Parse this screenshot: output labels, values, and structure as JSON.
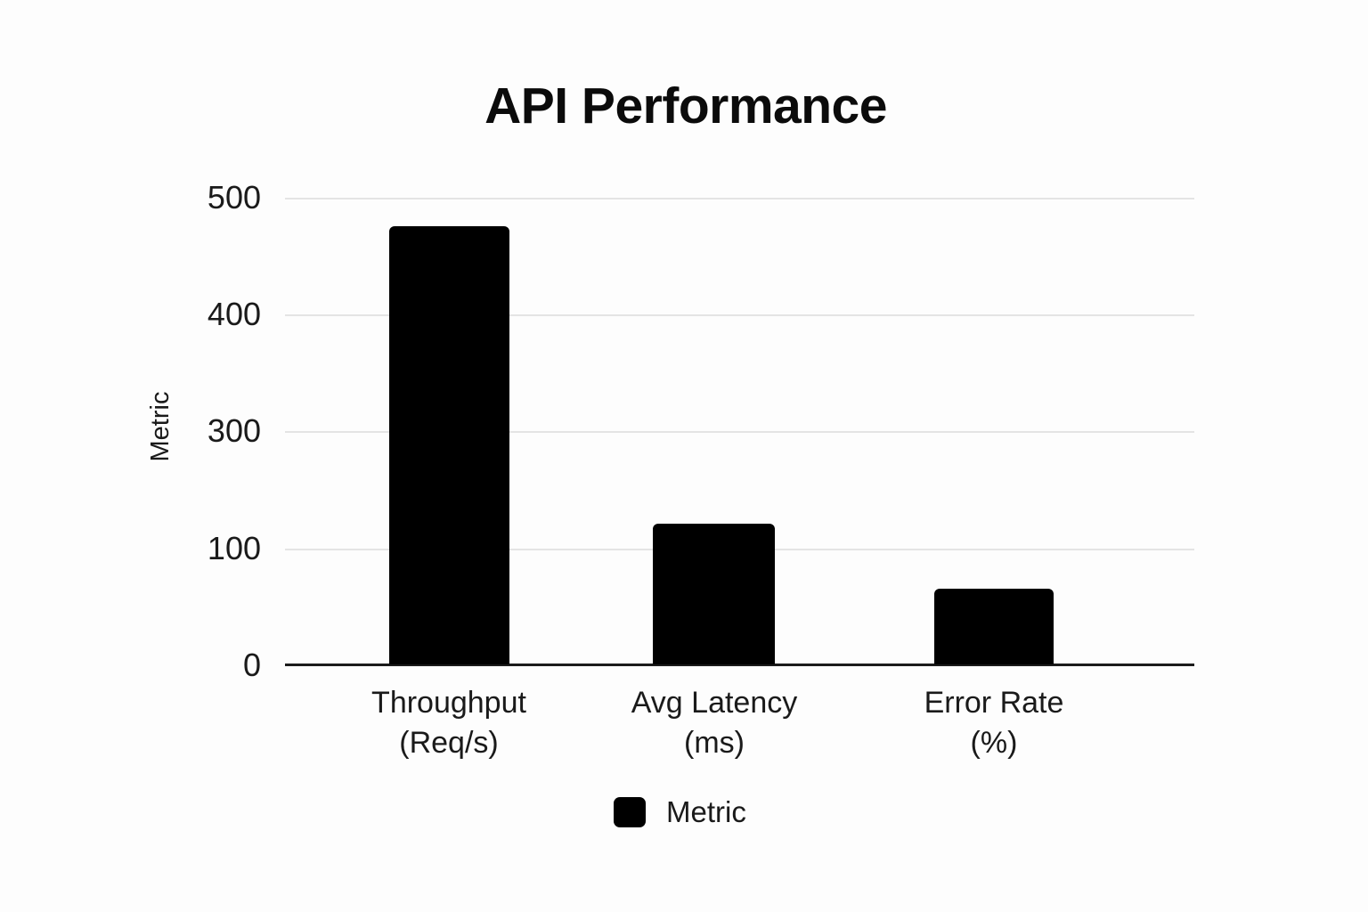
{
  "chart": {
    "title": "API Performance",
    "y_axis_title": "Metric",
    "y_tick_labels": [
      "500",
      "400",
      "300",
      "100",
      "0"
    ],
    "x_category_labels": [
      {
        "line1": "Throughput",
        "line2": "(Req/s)"
      },
      {
        "line1": "Avg Latency",
        "line2": "(ms)"
      },
      {
        "line1": "Error Rate",
        "line2": "(%)"
      }
    ],
    "legend_label": "Metric",
    "colors": {
      "bar": "#000000",
      "gridline": "#e4e4e4",
      "axis_line": "#1b1b1b",
      "text": "#1a1a1a",
      "background": "#fdfdfd"
    }
  },
  "chart_data": {
    "type": "bar",
    "title": "API Performance",
    "categories": [
      "Throughput (Req/s)",
      "Avg Latency (ms)",
      "Error Rate (%)"
    ],
    "series": [
      {
        "name": "Metric",
        "values": [
          475,
          140,
          65
        ]
      }
    ],
    "xlabel": "",
    "ylabel": "Metric",
    "y_ticks": [
      0,
      100,
      300,
      400,
      500
    ],
    "ylim": [
      0,
      500
    ],
    "grid": true,
    "legend_position": "bottom",
    "bar_color": "#000000",
    "axis_note": "gridlines evenly spaced but tick label sequence skips 200"
  }
}
